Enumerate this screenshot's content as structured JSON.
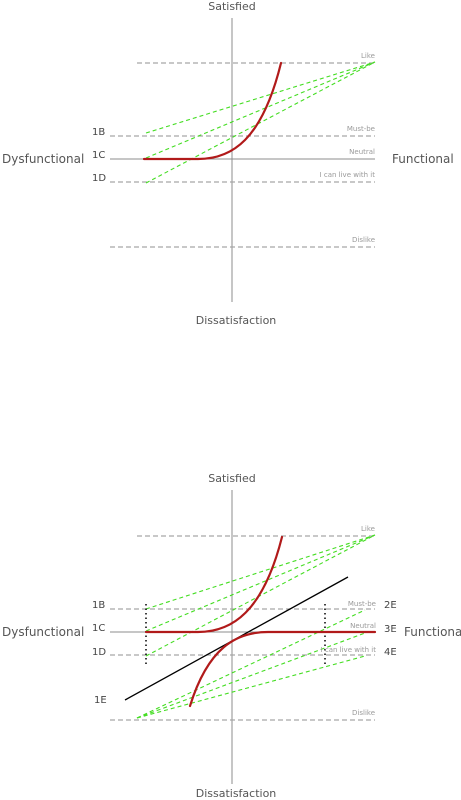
{
  "top": {
    "satisfied": "Satisfied",
    "dissatisfaction": "Dissatisfaction",
    "dysfunctional": "Dysfunctional",
    "functional": "Functional",
    "levels": {
      "like": "Like",
      "must_be": "Must-be",
      "neutral": "Neutral",
      "live_with": "I can live with it",
      "dislike": "Dislike"
    },
    "codes": {
      "b": "1B",
      "c": "1C",
      "d": "1D"
    }
  },
  "bottom": {
    "satisfied": "Satisfied",
    "dissatisfaction": "Dissatisfaction",
    "dysfunctional": "Dysfunctional",
    "functional": "Functional",
    "levels": {
      "like": "Like",
      "must_be": "Must-be",
      "neutral": "Neutral",
      "live_with": "I can live with it",
      "dislike": "Dislike"
    },
    "codes": {
      "b": "1B",
      "c": "1C",
      "d": "1D",
      "e_left": "1E",
      "e2": "2E",
      "e3": "3E",
      "e4": "4E"
    }
  }
}
